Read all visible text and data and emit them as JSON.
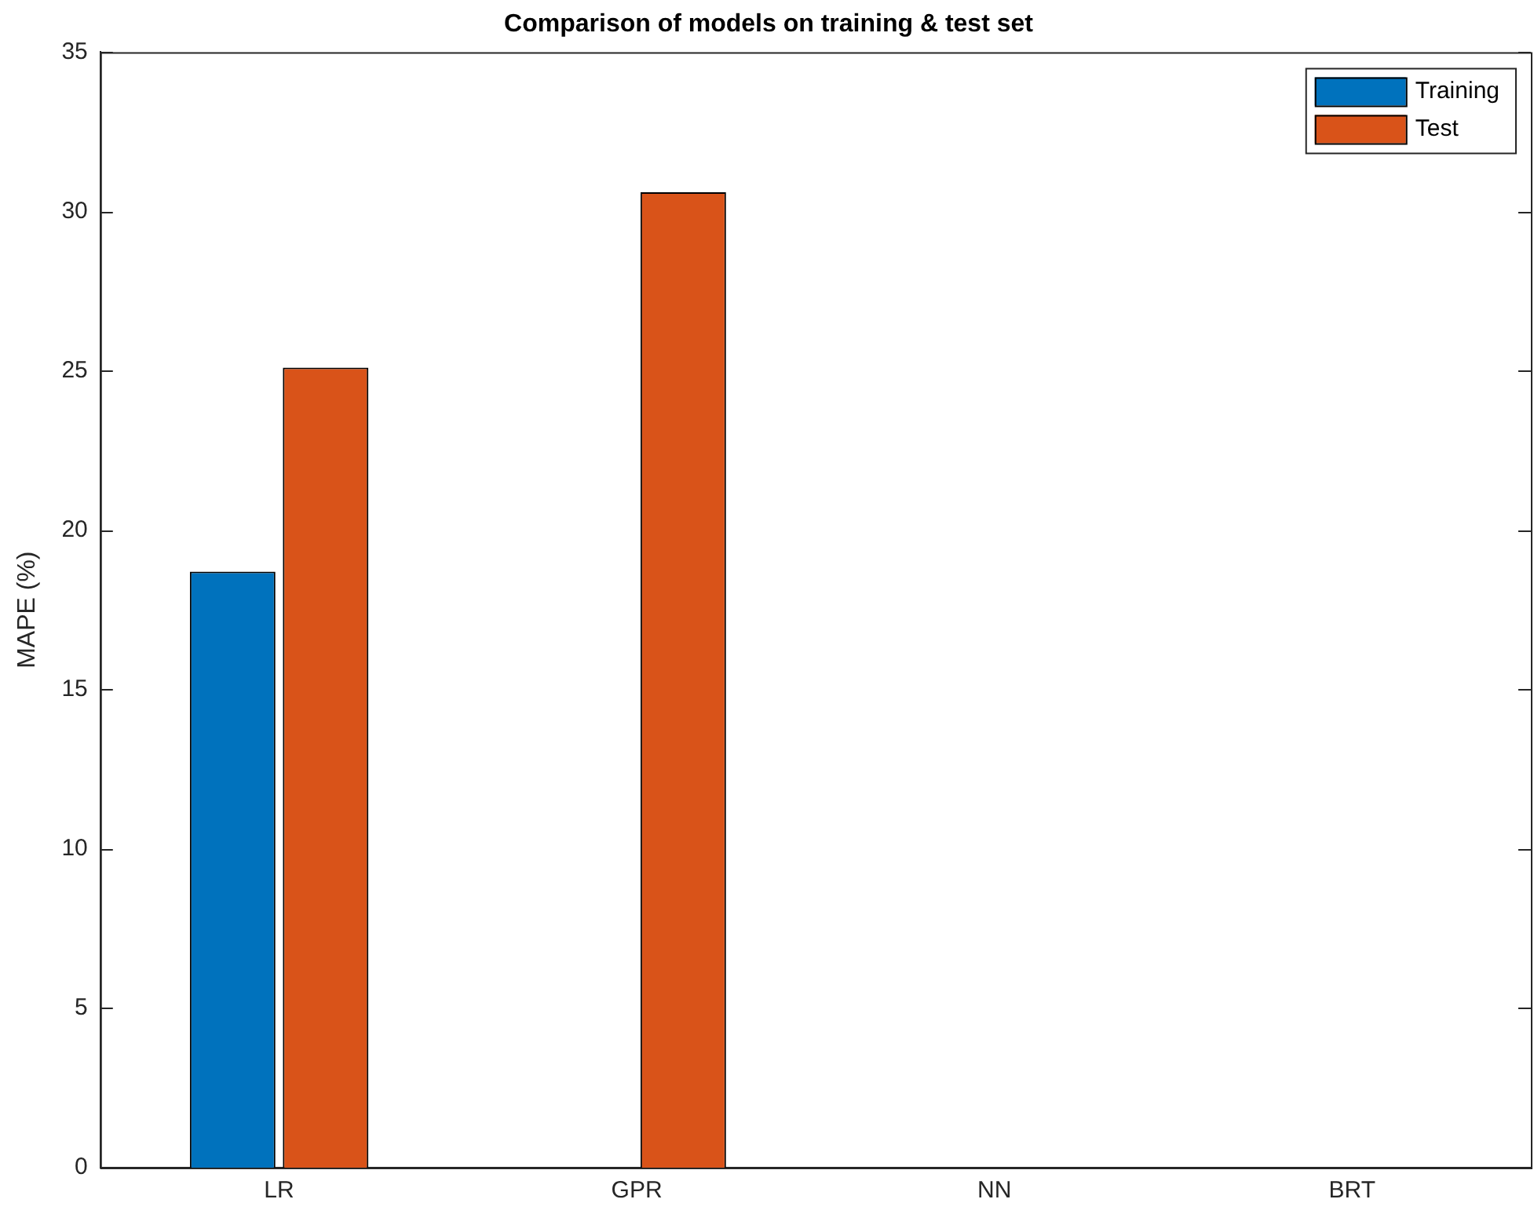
{
  "chart_data": {
    "type": "bar",
    "title": "Comparison of models on training & test set",
    "ylabel": "MAPE (%)",
    "categories": [
      "LR",
      "GPR",
      "NN",
      "BRT"
    ],
    "series": [
      {
        "name": "Training",
        "color": "#0072bd",
        "values": [
          18.7,
          null,
          null,
          null
        ]
      },
      {
        "name": "Test",
        "color": "#d95319",
        "values": [
          25.1,
          30.6,
          null,
          null
        ]
      }
    ],
    "ylim": [
      0,
      35
    ],
    "yticks": [
      0,
      5,
      10,
      15,
      20,
      25,
      30,
      35
    ],
    "grid": false,
    "legend": "top right"
  }
}
